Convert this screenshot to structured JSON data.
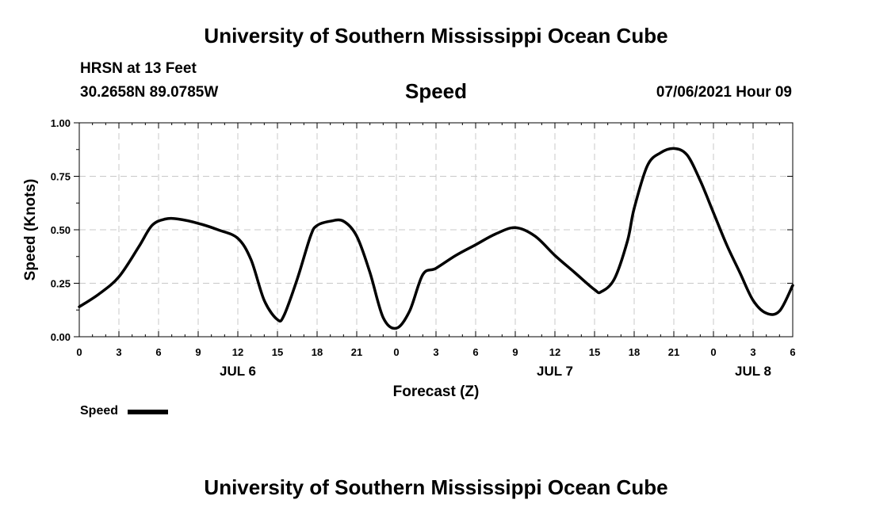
{
  "header": {
    "title": "University of Southern Mississippi Ocean Cube",
    "station": "HRSN at 13 Feet",
    "coords": "30.2658N  89.0785W",
    "variable": "Speed",
    "datetime": "07/06/2021 Hour 09"
  },
  "footer": {
    "title": "University of Southern Mississippi Ocean Cube"
  },
  "legend": {
    "label": "Speed"
  },
  "chart_data": {
    "type": "line",
    "title": "Speed",
    "xlabel": "Forecast (Z)",
    "ylabel": "Speed (Knots)",
    "xlim": [
      0,
      54
    ],
    "ylim": [
      0,
      1
    ],
    "grid": true,
    "legend_position": "bottom-left",
    "x_ticks": [
      0,
      3,
      6,
      9,
      12,
      15,
      18,
      21,
      24,
      27,
      30,
      33,
      36,
      39,
      42,
      45,
      48,
      51,
      54
    ],
    "x_tick_labels": [
      "0",
      "3",
      "6",
      "9",
      "12",
      "15",
      "18",
      "21",
      "0",
      "3",
      "6",
      "9",
      "12",
      "15",
      "18",
      "21",
      "0",
      "3",
      "6"
    ],
    "date_labels": [
      {
        "x": 12,
        "label": "JUL 6"
      },
      {
        "x": 36,
        "label": "JUL 7"
      },
      {
        "x": 51,
        "label": "JUL 8"
      }
    ],
    "y_ticks": [
      0,
      0.25,
      0.5,
      0.75,
      1.0
    ],
    "y_tick_labels": [
      "0.00",
      "0.25",
      "0.50",
      "0.75",
      "1.00"
    ],
    "series": [
      {
        "name": "Speed",
        "color": "#000000",
        "x": [
          0,
          1.5,
          3,
          4.5,
          5.5,
          6.5,
          7.5,
          9,
          10.5,
          12,
          13,
          14,
          15,
          15.5,
          16.5,
          17.5,
          18,
          19,
          20,
          21,
          22,
          23,
          24,
          25,
          26,
          27,
          28.5,
          30,
          31.5,
          33,
          34.5,
          36,
          37.5,
          39,
          39.5,
          40.5,
          41.5,
          42,
          43,
          44,
          45,
          46,
          47,
          48,
          49,
          50,
          51,
          52,
          53,
          54
        ],
        "y": [
          0.14,
          0.2,
          0.28,
          0.42,
          0.52,
          0.55,
          0.55,
          0.53,
          0.5,
          0.46,
          0.36,
          0.17,
          0.08,
          0.1,
          0.27,
          0.47,
          0.52,
          0.54,
          0.54,
          0.47,
          0.3,
          0.09,
          0.04,
          0.12,
          0.29,
          0.32,
          0.38,
          0.43,
          0.48,
          0.51,
          0.47,
          0.38,
          0.3,
          0.22,
          0.21,
          0.27,
          0.45,
          0.6,
          0.8,
          0.86,
          0.88,
          0.85,
          0.73,
          0.58,
          0.43,
          0.3,
          0.17,
          0.11,
          0.12,
          0.24
        ]
      }
    ]
  }
}
